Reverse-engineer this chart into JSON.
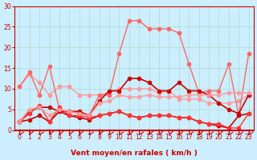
{
  "x": [
    0,
    1,
    2,
    3,
    4,
    5,
    6,
    7,
    8,
    9,
    10,
    11,
    12,
    13,
    14,
    15,
    16,
    17,
    18,
    19,
    20,
    21,
    22,
    23
  ],
  "series": [
    {
      "color": "#FF9999",
      "alpha": 1.0,
      "lw": 1.0,
      "ms": 3,
      "values": [
        10.5,
        13.5,
        11.5,
        8.5,
        10.5,
        10.5,
        8.5,
        8.5,
        8.5,
        9.0,
        10.0,
        10.0,
        10.0,
        10.0,
        9.0,
        9.5,
        7.5,
        7.5,
        7.5,
        6.5,
        6.5,
        6.5,
        7.0,
        8.5
      ]
    },
    {
      "color": "#FF6666",
      "alpha": 1.0,
      "lw": 1.0,
      "ms": 3,
      "values": [
        10.5,
        14.0,
        8.5,
        15.5,
        5.0,
        4.5,
        4.0,
        3.5,
        8.5,
        8.5,
        18.5,
        26.5,
        26.5,
        24.5,
        24.5,
        24.5,
        23.5,
        16.0,
        9.0,
        9.5,
        9.5,
        16.0,
        3.5,
        18.5
      ]
    },
    {
      "color": "#CC0000",
      "alpha": 1.0,
      "lw": 1.2,
      "ms": 3,
      "values": [
        2.0,
        4.5,
        5.5,
        5.5,
        4.5,
        4.5,
        4.5,
        3.5,
        7.0,
        9.5,
        9.5,
        12.5,
        12.5,
        11.5,
        9.5,
        9.5,
        11.5,
        9.5,
        9.5,
        8.5,
        6.5,
        5.0,
        4.0,
        8.5
      ]
    },
    {
      "color": "#CC0000",
      "alpha": 1.0,
      "lw": 1.2,
      "ms": 3,
      "values": [
        2.0,
        2.5,
        3.5,
        2.0,
        4.5,
        3.5,
        3.0,
        2.5,
        3.5,
        4.0,
        4.5,
        3.5,
        3.0,
        3.5,
        3.5,
        3.5,
        3.0,
        3.0,
        2.0,
        1.5,
        1.0,
        0.5,
        3.5,
        4.0
      ]
    },
    {
      "color": "#FF3333",
      "alpha": 1.0,
      "lw": 1.0,
      "ms": 3,
      "values": [
        2.0,
        4.0,
        6.0,
        2.0,
        5.5,
        3.5,
        3.5,
        3.0,
        3.5,
        4.0,
        4.5,
        3.5,
        3.0,
        3.5,
        3.5,
        3.5,
        3.0,
        3.0,
        2.0,
        1.5,
        1.5,
        0.5,
        0.5,
        4.0
      ]
    },
    {
      "color": "#FF9999",
      "alpha": 0.85,
      "lw": 1.3,
      "ms": 3,
      "values": [
        2.0,
        5.0,
        5.5,
        3.5,
        5.0,
        4.5,
        4.0,
        3.5,
        6.5,
        7.0,
        8.5,
        8.0,
        8.0,
        8.5,
        8.0,
        8.0,
        8.0,
        8.5,
        8.5,
        8.5,
        8.5,
        9.0,
        9.0,
        9.0
      ]
    }
  ],
  "ylim": [
    0,
    30
  ],
  "yticks": [
    0,
    5,
    10,
    15,
    20,
    25,
    30
  ],
  "xlim": [
    -0.5,
    23.5
  ],
  "xticks": [
    0,
    1,
    2,
    3,
    4,
    5,
    6,
    7,
    8,
    9,
    10,
    11,
    12,
    13,
    14,
    15,
    16,
    17,
    18,
    19,
    20,
    21,
    22,
    23
  ],
  "xlabel": "Vent moyen/en rafales ( km/h )",
  "bg_color": "#CCEEFF",
  "grid_color": "#AADDCC",
  "line_color": "#CC0000",
  "tick_color": "#CC0000",
  "label_color": "#CC0000",
  "arrow_color": "#CC0000"
}
